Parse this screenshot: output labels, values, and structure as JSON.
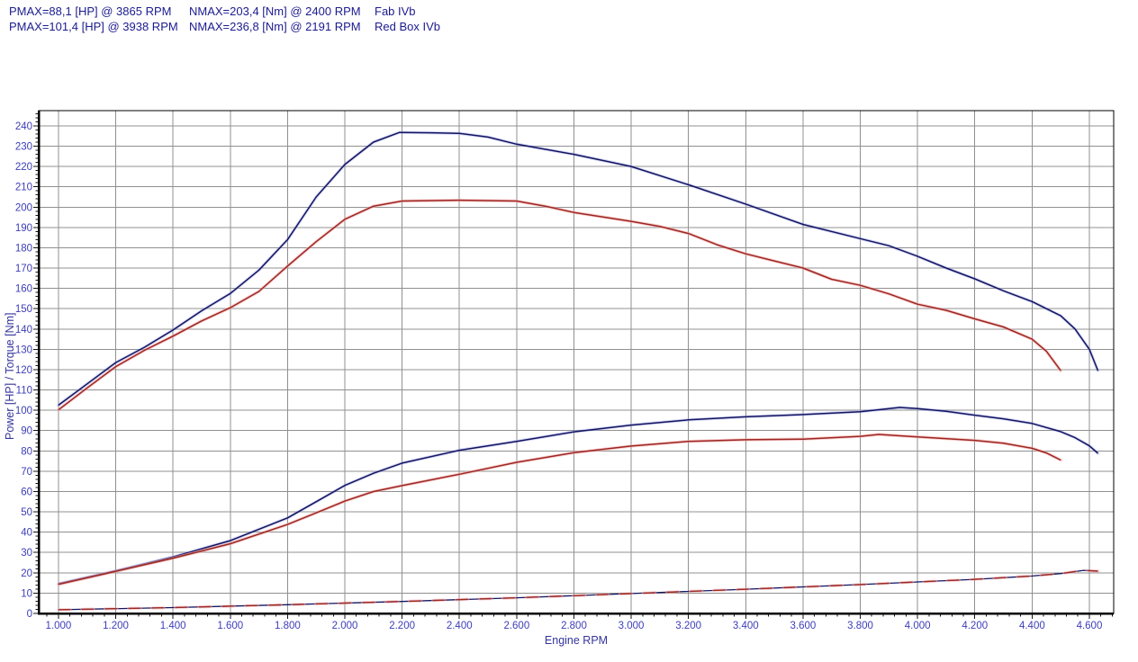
{
  "header": {
    "runs": [
      {
        "pmax": "PMAX=88,1 [HP] @ 3865 RPM",
        "nmax": "NMAX=203,4 [Nm] @ 2400 RPM",
        "label": "Fab IVb"
      },
      {
        "pmax": "PMAX=101,4 [HP] @ 3938 RPM",
        "nmax": "NMAX=236,8 [Nm] @ 2191 RPM",
        "label": "Red Box IVb"
      }
    ]
  },
  "chart_data": {
    "type": "line",
    "title": "",
    "xlabel": "Engine RPM",
    "ylabel": "Power [HP] / Torque [Nm]",
    "xlim": [
      931,
      4685
    ],
    "ylim": [
      0,
      247.5
    ],
    "grid": true,
    "legend_position": "none",
    "grid_color": "#909090",
    "tick_label_color": "#3d3db8",
    "x_major_ticks": [
      1000,
      1200,
      1400,
      1600,
      1800,
      2000,
      2200,
      2400,
      2600,
      2800,
      3000,
      3200,
      3400,
      3600,
      3800,
      4000,
      4200,
      4400,
      4600
    ],
    "x_tick_labels": [
      "1.000",
      "1.200",
      "1.400",
      "1.600",
      "1.800",
      "2.000",
      "2.200",
      "2.400",
      "2.600",
      "2.800",
      "3.000",
      "3.200",
      "3.400",
      "3.600",
      "3.800",
      "4.000",
      "4.200",
      "4.400",
      "4.600"
    ],
    "x_minor_step": 40,
    "y_tick_values": [
      0,
      10,
      20,
      30,
      40,
      50,
      60,
      70,
      80,
      90,
      100,
      110,
      120,
      130,
      140,
      150,
      160,
      170,
      180,
      190,
      200,
      210,
      220,
      230,
      240
    ],
    "y_minor_step": 2,
    "runs": [
      {
        "name": "Fab IVb",
        "color": "#9c2723",
        "pmax_hp": 88.1,
        "pmax_rpm": 3865,
        "nmax_nm": 203.4,
        "nmax_rpm": 2400
      },
      {
        "name": "Red Box IVb",
        "color": "#14145f",
        "pmax_hp": 101.4,
        "pmax_rpm": 3938,
        "nmax_nm": 236.8,
        "nmax_rpm": 2191
      }
    ],
    "series": [
      {
        "name": "torque-red-box-ivb",
        "run": "Red Box IVb",
        "quantity": "torque",
        "unit": "Nm",
        "color": "#14145f",
        "glow": "rgba(140,150,230,0.38)",
        "width": 1.5,
        "points": [
          [
            1000,
            102.5
          ],
          [
            1100,
            113
          ],
          [
            1200,
            123.5
          ],
          [
            1300,
            131
          ],
          [
            1400,
            139.5
          ],
          [
            1500,
            149
          ],
          [
            1600,
            157.5
          ],
          [
            1700,
            169
          ],
          [
            1800,
            184
          ],
          [
            1900,
            205
          ],
          [
            2000,
            221
          ],
          [
            2100,
            232
          ],
          [
            2191,
            236.8
          ],
          [
            2300,
            236.6
          ],
          [
            2400,
            236.3
          ],
          [
            2500,
            234.5
          ],
          [
            2600,
            231
          ],
          [
            2800,
            226
          ],
          [
            3000,
            220
          ],
          [
            3200,
            211
          ],
          [
            3400,
            201.5
          ],
          [
            3600,
            191.5
          ],
          [
            3800,
            184.5
          ],
          [
            3900,
            181
          ],
          [
            4000,
            175.8
          ],
          [
            4100,
            170
          ],
          [
            4200,
            164.7
          ],
          [
            4300,
            158.8
          ],
          [
            4400,
            153.5
          ],
          [
            4500,
            146.5
          ],
          [
            4550,
            140
          ],
          [
            4600,
            130
          ],
          [
            4630,
            119.5
          ]
        ]
      },
      {
        "name": "power-red-box-ivb",
        "run": "Red Box IVb",
        "quantity": "power",
        "unit": "HP",
        "color": "#14145f",
        "glow": "rgba(140,150,230,0.38)",
        "width": 1.5,
        "points": [
          [
            1000,
            14.6
          ],
          [
            1200,
            21
          ],
          [
            1400,
            27.8
          ],
          [
            1600,
            35.8
          ],
          [
            1800,
            47
          ],
          [
            1900,
            55
          ],
          [
            2000,
            63
          ],
          [
            2100,
            69
          ],
          [
            2200,
            74
          ],
          [
            2400,
            80.3
          ],
          [
            2600,
            84.7
          ],
          [
            2800,
            89.4
          ],
          [
            3000,
            92.7
          ],
          [
            3200,
            95.3
          ],
          [
            3400,
            96.8
          ],
          [
            3600,
            97.9
          ],
          [
            3800,
            99.3
          ],
          [
            3938,
            101.4
          ],
          [
            4000,
            100.8
          ],
          [
            4100,
            99.5
          ],
          [
            4200,
            97.6
          ],
          [
            4300,
            95.8
          ],
          [
            4400,
            93.5
          ],
          [
            4500,
            89.5
          ],
          [
            4550,
            86.5
          ],
          [
            4600,
            82.5
          ],
          [
            4630,
            78.8
          ]
        ]
      },
      {
        "name": "baseline-red-box-ivb",
        "run": "Red Box IVb",
        "quantity": "baseline",
        "unit": "",
        "color": "#14145f",
        "width": 1.3,
        "points": [
          [
            1000,
            1.8
          ],
          [
            1400,
            2.9
          ],
          [
            1800,
            4.3
          ],
          [
            2200,
            5.9
          ],
          [
            2600,
            7.7
          ],
          [
            3000,
            9.8
          ],
          [
            3400,
            11.9
          ],
          [
            3800,
            14.2
          ],
          [
            4200,
            16.8
          ],
          [
            4400,
            18.4
          ],
          [
            4500,
            19.6
          ],
          [
            4580,
            21.2
          ],
          [
            4630,
            20.8
          ]
        ]
      },
      {
        "name": "torque-fab-ivb",
        "run": "Fab IVb",
        "quantity": "torque",
        "unit": "Nm",
        "color": "#9c2723",
        "glow": "rgba(243,170,170,0.6)",
        "width": 1.5,
        "points": [
          [
            1000,
            100.2
          ],
          [
            1100,
            111
          ],
          [
            1200,
            121.5
          ],
          [
            1300,
            129.5
          ],
          [
            1400,
            136.5
          ],
          [
            1500,
            144
          ],
          [
            1600,
            150.5
          ],
          [
            1700,
            158.5
          ],
          [
            1800,
            171
          ],
          [
            1900,
            183
          ],
          [
            2000,
            194
          ],
          [
            2100,
            200.5
          ],
          [
            2200,
            203
          ],
          [
            2400,
            203.4
          ],
          [
            2600,
            203
          ],
          [
            2700,
            200.5
          ],
          [
            2800,
            197.4
          ],
          [
            3000,
            193
          ],
          [
            3100,
            190.5
          ],
          [
            3200,
            187
          ],
          [
            3300,
            181.5
          ],
          [
            3400,
            177
          ],
          [
            3500,
            173.5
          ],
          [
            3600,
            170
          ],
          [
            3700,
            164.5
          ],
          [
            3800,
            161.5
          ],
          [
            3900,
            157.3
          ],
          [
            4000,
            152.2
          ],
          [
            4100,
            149.2
          ],
          [
            4200,
            145
          ],
          [
            4300,
            141
          ],
          [
            4400,
            135
          ],
          [
            4450,
            129
          ],
          [
            4500,
            119.5
          ]
        ]
      },
      {
        "name": "power-fab-ivb",
        "run": "Fab IVb",
        "quantity": "power",
        "unit": "HP",
        "color": "#9c2723",
        "glow": "rgba(243,170,170,0.6)",
        "width": 1.5,
        "points": [
          [
            1000,
            14.3
          ],
          [
            1200,
            20.7
          ],
          [
            1400,
            27.2
          ],
          [
            1600,
            34.3
          ],
          [
            1800,
            43.8
          ],
          [
            1900,
            49.5
          ],
          [
            2000,
            55.3
          ],
          [
            2100,
            60
          ],
          [
            2200,
            62.9
          ],
          [
            2400,
            68.5
          ],
          [
            2600,
            74.4
          ],
          [
            2800,
            79.1
          ],
          [
            3000,
            82.4
          ],
          [
            3200,
            84.7
          ],
          [
            3400,
            85.5
          ],
          [
            3600,
            85.8
          ],
          [
            3800,
            87.2
          ],
          [
            3865,
            88.1
          ],
          [
            4000,
            86.9
          ],
          [
            4200,
            85.2
          ],
          [
            4300,
            83.8
          ],
          [
            4400,
            81.3
          ],
          [
            4450,
            79
          ],
          [
            4500,
            75.5
          ]
        ]
      },
      {
        "name": "baseline-fab-ivb",
        "run": "Fab IVb",
        "quantity": "baseline",
        "unit": "",
        "color": "#9c2723",
        "glow": "rgba(243,170,170,0.5)",
        "width": 1.4,
        "dash": "13 13",
        "points": [
          [
            1000,
            1.8
          ],
          [
            1400,
            2.9
          ],
          [
            1800,
            4.3
          ],
          [
            2200,
            5.9
          ],
          [
            2600,
            7.7
          ],
          [
            3000,
            9.8
          ],
          [
            3400,
            11.9
          ],
          [
            3800,
            14.2
          ],
          [
            4200,
            16.8
          ],
          [
            4400,
            18.4
          ],
          [
            4500,
            19.6
          ],
          [
            4580,
            21.2
          ],
          [
            4630,
            20.8
          ]
        ]
      }
    ]
  }
}
